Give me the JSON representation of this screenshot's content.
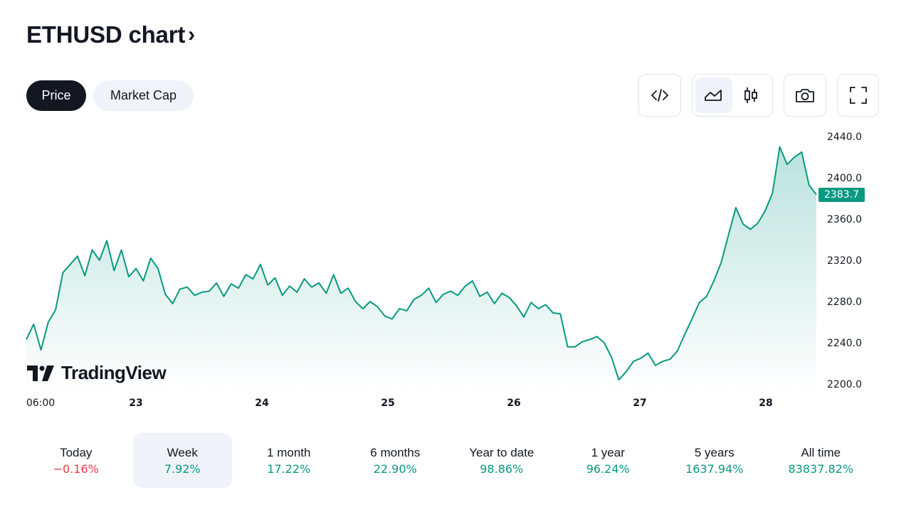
{
  "header": {
    "title": "ETHUSD chart",
    "chevron": "›"
  },
  "tabs": [
    {
      "label": "Price",
      "active": true
    },
    {
      "label": "Market Cap",
      "active": false
    }
  ],
  "toolbar": {
    "icons": [
      "code-icon",
      "area-chart-icon",
      "candlestick-icon",
      "camera-icon",
      "fullscreen-icon"
    ],
    "selected": "area-chart-icon"
  },
  "colors": {
    "accent": "#089981",
    "negative": "#f23645",
    "dark": "#131722",
    "pill_bg": "#f0f3fa"
  },
  "chart_data": {
    "type": "area",
    "y_ticks": [
      "2440.0",
      "2400.0",
      "2360.0",
      "2320.0",
      "2280.0",
      "2240.0",
      "2200.0"
    ],
    "x_ticks": [
      "06:00",
      "23",
      "24",
      "25",
      "26",
      "27",
      "28"
    ],
    "ylim": [
      2200,
      2440
    ],
    "last_price": "2383.7",
    "series": [
      {
        "values": [
          2243,
          2258,
          2233,
          2260,
          2272,
          2308,
          2316,
          2324,
          2305,
          2330,
          2320,
          2339,
          2310,
          2330,
          2304,
          2312,
          2300,
          2322,
          2312,
          2287,
          2278,
          2292,
          2294,
          2286,
          2289,
          2290,
          2298,
          2285,
          2297,
          2293,
          2306,
          2302,
          2316,
          2296,
          2303,
          2286,
          2295,
          2289,
          2302,
          2294,
          2298,
          2288,
          2306,
          2288,
          2293,
          2280,
          2273,
          2280,
          2275,
          2266,
          2263,
          2273,
          2271,
          2282,
          2286,
          2293,
          2279,
          2287,
          2290,
          2286,
          2295,
          2300,
          2285,
          2289,
          2278,
          2288,
          2284,
          2276,
          2265,
          2279,
          2273,
          2277,
          2269,
          2268,
          2236,
          2236,
          2241,
          2243,
          2246,
          2240,
          2226,
          2204,
          2212,
          2222,
          2225,
          2230,
          2218,
          2222,
          2224,
          2232,
          2248,
          2263,
          2279,
          2285,
          2300,
          2318,
          2345,
          2371,
          2355,
          2350,
          2356,
          2368,
          2385,
          2430,
          2413,
          2420,
          2425,
          2393,
          2383.7
        ]
      }
    ]
  },
  "watermark": {
    "text": "TradingView"
  },
  "periods": [
    {
      "label": "Today",
      "value": "−0.16%",
      "direction": "down",
      "selected": false
    },
    {
      "label": "Week",
      "value": "7.92%",
      "direction": "up",
      "selected": true
    },
    {
      "label": "1 month",
      "value": "17.22%",
      "direction": "up",
      "selected": false
    },
    {
      "label": "6 months",
      "value": "22.90%",
      "direction": "up",
      "selected": false
    },
    {
      "label": "Year to date",
      "value": "98.86%",
      "direction": "up",
      "selected": false
    },
    {
      "label": "1 year",
      "value": "96.24%",
      "direction": "up",
      "selected": false
    },
    {
      "label": "5 years",
      "value": "1637.94%",
      "direction": "up",
      "selected": false
    },
    {
      "label": "All time",
      "value": "83837.82%",
      "direction": "up",
      "selected": false
    }
  ]
}
